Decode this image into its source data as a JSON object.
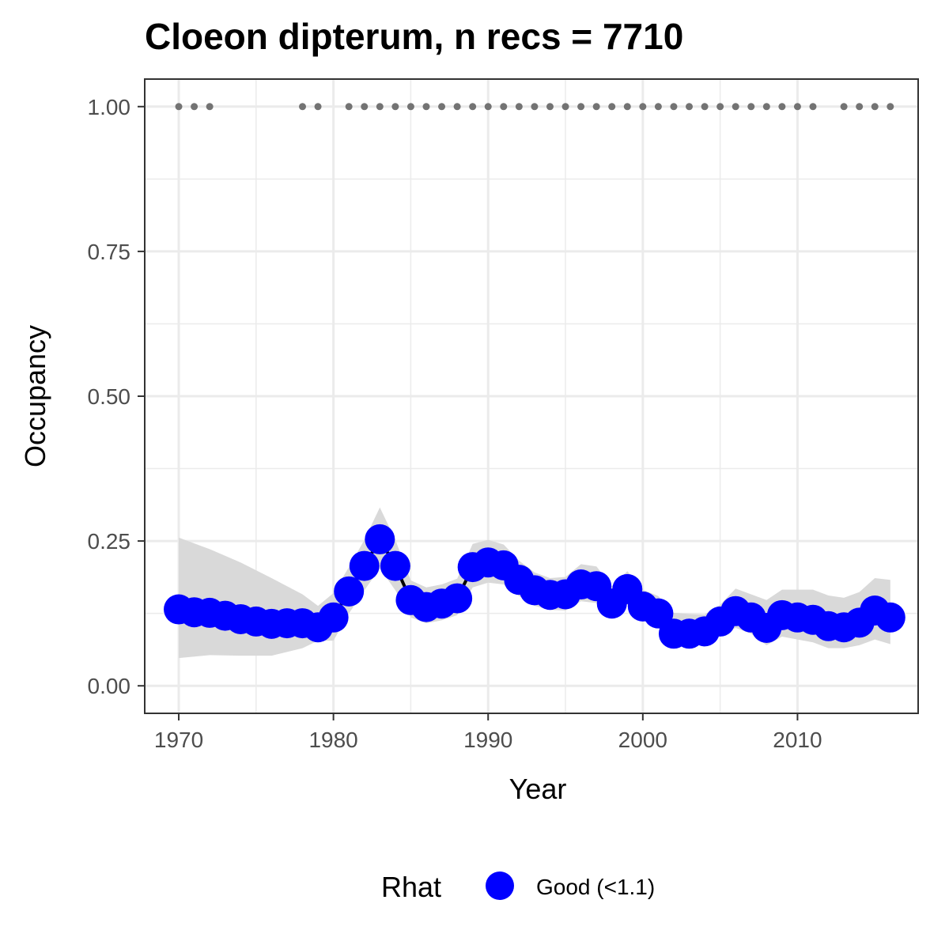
{
  "chart_data": {
    "type": "line",
    "title": "Cloeon dipterum, n recs = 7710",
    "xlabel": "Year",
    "ylabel": "Occupancy",
    "xlim": [
      1967.8,
      2017.8
    ],
    "ylim": [
      -0.0475,
      1.0475
    ],
    "x_ticks": [
      1970,
      1980,
      1990,
      2000,
      2010
    ],
    "x_tick_labels": [
      "1970",
      "1980",
      "1990",
      "2000",
      "2010"
    ],
    "y_ticks": [
      0,
      0.25,
      0.5,
      0.75,
      1.0
    ],
    "y_tick_labels": [
      "0.00",
      "0.25",
      "0.50",
      "0.75",
      "1.00"
    ],
    "grid": true,
    "legend": {
      "title": "Rhat",
      "placement": "bottom",
      "entries": [
        {
          "label": "Good (<1.1)",
          "color": "#0000ff"
        }
      ]
    },
    "colors": {
      "series": "#0000ff",
      "line": "#000000",
      "ribbon": "#d9d9d9",
      "record_dots": "#737373",
      "grid": "#ebebeb",
      "panel_border": "#333333"
    },
    "series": [
      {
        "x": [
          1970,
          1971,
          1972,
          1973,
          1974,
          1975,
          1976,
          1977,
          1978,
          1979,
          1980,
          1981,
          1982,
          1983,
          1984,
          1985,
          1986,
          1987,
          1988,
          1989,
          1990,
          1991,
          1992,
          1993,
          1994,
          1995,
          1996,
          1997,
          1998,
          1999,
          2000,
          2001,
          2002,
          2003,
          2004,
          2005,
          2006,
          2007,
          2008,
          2009,
          2010,
          2011,
          2012,
          2013,
          2014,
          2015,
          2016
        ],
        "y": [
          0.132,
          0.127,
          0.126,
          0.121,
          0.115,
          0.111,
          0.107,
          0.108,
          0.108,
          0.101,
          0.118,
          0.163,
          0.207,
          0.253,
          0.207,
          0.148,
          0.136,
          0.142,
          0.151,
          0.205,
          0.213,
          0.208,
          0.183,
          0.165,
          0.157,
          0.158,
          0.175,
          0.172,
          0.142,
          0.167,
          0.137,
          0.125,
          0.09,
          0.09,
          0.094,
          0.111,
          0.129,
          0.118,
          0.1,
          0.122,
          0.118,
          0.114,
          0.103,
          0.101,
          0.109,
          0.13,
          0.118
        ]
      }
    ],
    "ribbon": {
      "x": [
        1970,
        1972,
        1974,
        1976,
        1978,
        1979,
        1980,
        1981,
        1982,
        1983,
        1984,
        1985,
        1986,
        1987,
        1988,
        1989,
        1990,
        1991,
        1992,
        1993,
        1994,
        1995,
        1996,
        1997,
        1998,
        1999,
        2000,
        2001,
        2002,
        2003,
        2004,
        2005,
        2006,
        2007,
        2008,
        2009,
        2010,
        2011,
        2012,
        2013,
        2014,
        2015,
        2016
      ],
      "lower": [
        0.048,
        0.053,
        0.052,
        0.052,
        0.065,
        0.078,
        0.078,
        0.125,
        0.165,
        0.203,
        0.165,
        0.118,
        0.108,
        0.113,
        0.122,
        0.17,
        0.178,
        0.175,
        0.155,
        0.138,
        0.131,
        0.13,
        0.146,
        0.143,
        0.118,
        0.14,
        0.113,
        0.1,
        0.07,
        0.07,
        0.075,
        0.088,
        0.1,
        0.09,
        0.07,
        0.085,
        0.08,
        0.075,
        0.065,
        0.065,
        0.07,
        0.08,
        0.072
      ],
      "upper": [
        0.256,
        0.236,
        0.213,
        0.186,
        0.158,
        0.138,
        0.16,
        0.205,
        0.252,
        0.308,
        0.252,
        0.182,
        0.17,
        0.175,
        0.185,
        0.245,
        0.252,
        0.244,
        0.216,
        0.196,
        0.186,
        0.188,
        0.21,
        0.206,
        0.172,
        0.198,
        0.166,
        0.155,
        0.126,
        0.124,
        0.123,
        0.14,
        0.168,
        0.158,
        0.148,
        0.166,
        0.166,
        0.166,
        0.156,
        0.152,
        0.162,
        0.186,
        0.183
      ]
    },
    "records": {
      "y": 1.0,
      "years": [
        1970,
        1971,
        1972,
        1978,
        1979,
        1981,
        1982,
        1983,
        1984,
        1985,
        1986,
        1987,
        1988,
        1989,
        1990,
        1991,
        1992,
        1993,
        1994,
        1995,
        1996,
        1997,
        1998,
        1999,
        2000,
        2001,
        2002,
        2003,
        2004,
        2005,
        2006,
        2007,
        2008,
        2009,
        2010,
        2011,
        2013,
        2014,
        2015,
        2016
      ]
    }
  }
}
